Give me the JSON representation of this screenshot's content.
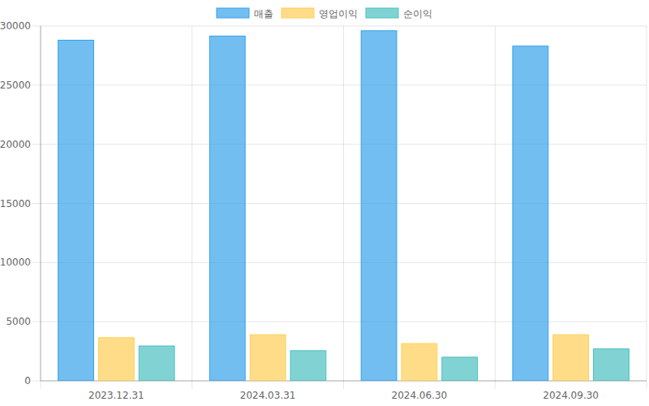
{
  "chart_data": {
    "type": "bar",
    "categories": [
      "2023.12.31",
      "2024.03.31",
      "2024.06.30",
      "2024.09.30"
    ],
    "series": [
      {
        "name": "매출",
        "color": "#36a2eb",
        "values": [
          28800,
          29150,
          29600,
          28300
        ]
      },
      {
        "name": "영업이익",
        "color": "#ffce56",
        "values": [
          3650,
          3900,
          3150,
          3900
        ]
      },
      {
        "name": "순이익",
        "color": "#4bc0c0",
        "values": [
          2950,
          2550,
          2000,
          2700
        ]
      }
    ],
    "ylim": [
      0,
      30000
    ],
    "yticks": [
      0,
      5000,
      10000,
      15000,
      20000,
      25000,
      30000
    ],
    "grid": true,
    "legend": "top"
  }
}
